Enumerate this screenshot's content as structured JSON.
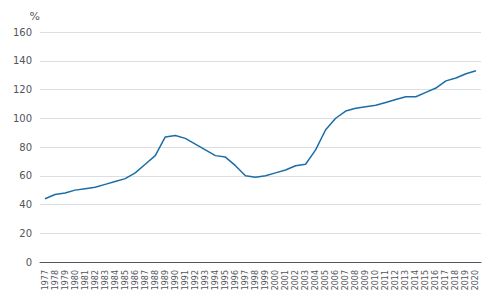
{
  "chart_data": {
    "type": "line",
    "ylabel": "%",
    "categories": [
      "1977",
      "1978",
      "1979",
      "1980",
      "1981",
      "1982",
      "1983",
      "1984",
      "1985",
      "1986",
      "1987",
      "1988",
      "1989",
      "1990",
      "1991",
      "1992",
      "1993",
      "1994",
      "1995",
      "1996",
      "1997",
      "1998",
      "1999",
      "2000",
      "2001",
      "2002",
      "2003",
      "2004",
      "2005",
      "2006",
      "2007",
      "2008",
      "2009",
      "2010",
      "2011",
      "2012",
      "2013",
      "2014",
      "2015",
      "2016",
      "2017",
      "2018",
      "2019",
      "2020"
    ],
    "values": [
      44,
      47,
      48,
      50,
      51,
      52,
      54,
      56,
      58,
      62,
      68,
      74,
      87,
      88,
      86,
      82,
      78,
      74,
      73,
      67,
      60,
      59,
      60,
      62,
      64,
      67,
      68,
      78,
      92,
      100,
      105,
      107,
      108,
      109,
      111,
      113,
      115,
      115,
      118,
      121,
      126,
      128,
      131,
      133
    ],
    "color": "#1a6ea8",
    "ylim": [
      0,
      160
    ],
    "yticks": [
      0,
      20,
      40,
      60,
      80,
      100,
      120,
      140,
      160
    ],
    "grid": true
  }
}
